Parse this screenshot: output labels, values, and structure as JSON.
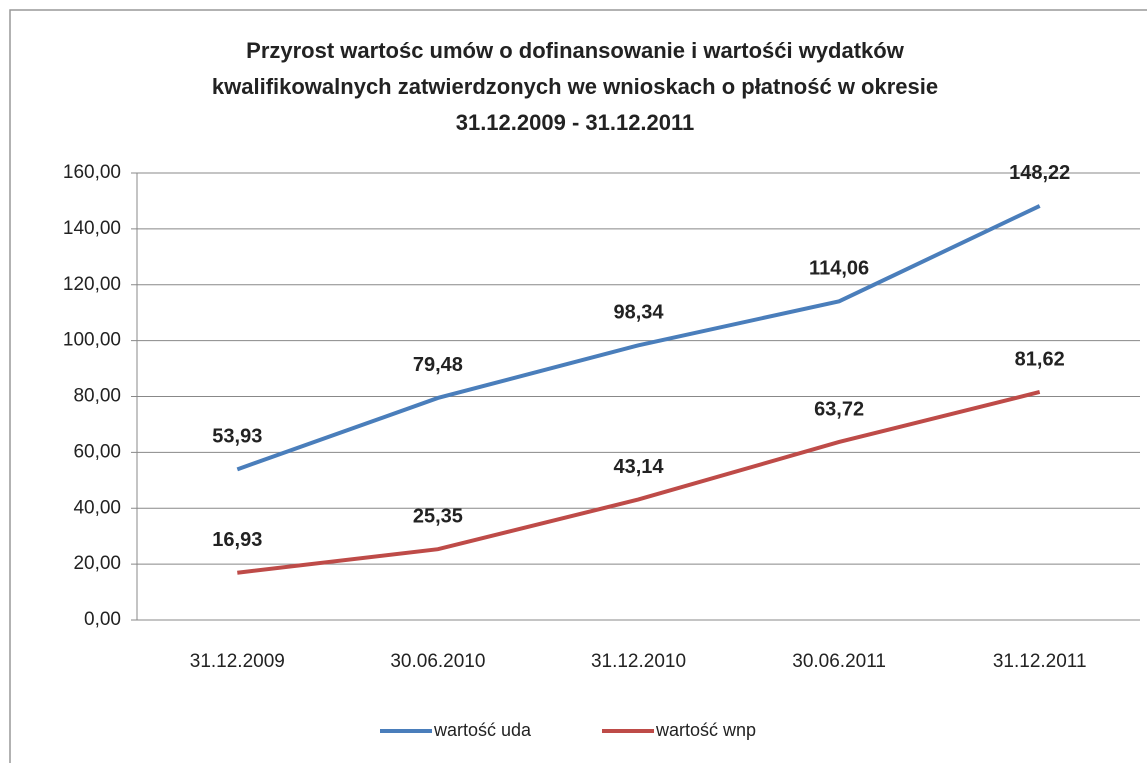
{
  "chart_data": {
    "type": "line",
    "title": [
      "Przyrost wartośc umów o dofinansowanie  i wartośći wydatków",
      "kwalifikowalnych zatwierdzonych we wnioskach o płatność w okresie",
      "31.12.2009 - 31.12.2011"
    ],
    "categories": [
      "31.12.2009",
      "30.06.2010",
      "31.12.2010",
      "30.06.2011",
      "31.12.2011"
    ],
    "series": [
      {
        "name": "wartość uda",
        "color": "#4a7ebb",
        "values": [
          53.93,
          79.48,
          98.34,
          114.06,
          148.22
        ],
        "value_labels": [
          "53,93",
          "79,48",
          "98,34",
          "114,06",
          "148,22"
        ]
      },
      {
        "name": "wartość wnp",
        "color": "#be4b48",
        "values": [
          16.93,
          25.35,
          43.14,
          63.72,
          81.62
        ],
        "value_labels": [
          "16,93",
          "25,35",
          "43,14",
          "63,72",
          "81,62"
        ]
      }
    ],
    "ylim": [
      0,
      160
    ],
    "yticks": [
      {
        "value": 0,
        "label": "0,00"
      },
      {
        "value": 20,
        "label": "20,00"
      },
      {
        "value": 40,
        "label": "40,00"
      },
      {
        "value": 60,
        "label": "60,00"
      },
      {
        "value": 80,
        "label": "80,00"
      },
      {
        "value": 100,
        "label": "100,00"
      },
      {
        "value": 120,
        "label": "120,00"
      },
      {
        "value": 140,
        "label": "140,00"
      },
      {
        "value": 160,
        "label": "160,00"
      }
    ],
    "grid": true,
    "legend": "bottom"
  }
}
